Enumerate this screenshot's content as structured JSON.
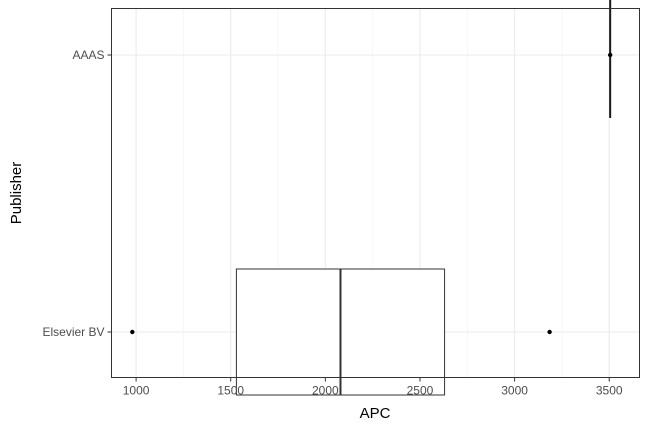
{
  "chart_data": {
    "type": "boxplot",
    "orientation": "horizontal",
    "xlabel": "APC",
    "ylabel": "Publisher",
    "xlim": [
      870,
      3660
    ],
    "x_ticks": [
      1000,
      1500,
      2000,
      2500,
      3000,
      3500
    ],
    "x_tick_labels": [
      "1000",
      "1500",
      "2000",
      "2500",
      "3000",
      "3500"
    ],
    "grid": true,
    "categories": [
      "Elsevier BV",
      "AAAS"
    ],
    "boxes": [
      {
        "category": "Elsevier BV",
        "whisker_low": 1530,
        "q1": 1530,
        "median": 2080,
        "q3": 2630,
        "whisker_high": 2630,
        "outliers": [
          980,
          3185
        ]
      },
      {
        "category": "AAAS",
        "whisker_low": 3505,
        "q1": 3505,
        "median": 3505,
        "q3": 3505,
        "whisker_high": 3505,
        "outliers": []
      }
    ]
  }
}
